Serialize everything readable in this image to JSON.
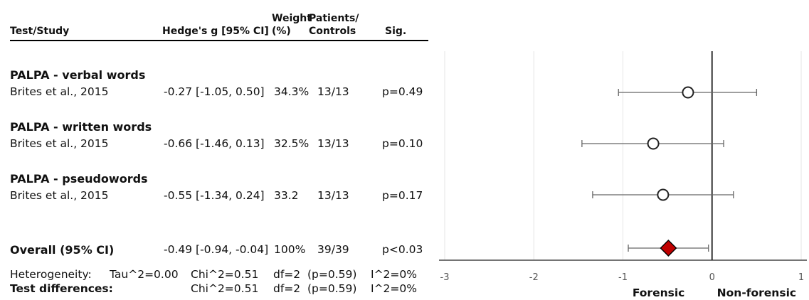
{
  "headers": {
    "study": "Test/Study",
    "effect": "Hedge's g [95% CI]",
    "weight_l1": "Weight",
    "weight_l2": "(%)",
    "pc_l1": "Patients/",
    "pc_l2": "Controls",
    "sig": "Sig."
  },
  "groups": [
    {
      "title": "PALPA - verbal words",
      "study": "Brites et al., 2015",
      "effect": "-0.27 [-1.05, 0.50]",
      "weight": "34.3%",
      "pc": "13/13",
      "sig": "p=0.49"
    },
    {
      "title": "PALPA - written words",
      "study": "Brites et al., 2015",
      "effect": "-0.66 [-1.46, 0.13]",
      "weight": "32.5%",
      "pc": "13/13",
      "sig": "p=0.10"
    },
    {
      "title": "PALPA - pseudowords",
      "study": "Brites et al., 2015",
      "effect": "-0.55 [-1.34, 0.24]",
      "weight": "33.2",
      "pc": "13/13",
      "sig": "p=0.17"
    }
  ],
  "overall": {
    "label": "Overall (95% CI)",
    "effect": "-0.49 [-0.94, -0.04]",
    "weight": "100%",
    "pc": "39/39",
    "sig": "p<0.03"
  },
  "heterogeneity": {
    "label": "Heterogeneity:",
    "tau": "Tau^2=0.00",
    "chi": "Chi^2=0.51",
    "df": "df=2",
    "p": "(p=0.59)",
    "i2": "I^2=0%"
  },
  "test_differences": {
    "label": "Test differences:",
    "chi": "Chi^2=0.51",
    "df": "df=2",
    "p": "(p=0.59)",
    "i2": "I^2=0%"
  },
  "chart_data": {
    "type": "scatter",
    "subtype": "forest-plot",
    "xlim": [
      -3,
      1
    ],
    "xticks": [
      "-3",
      "-2",
      "-1",
      "0",
      "1"
    ],
    "reference_line": 0,
    "grid": true,
    "x_axis_words": {
      "left": "Forensic",
      "right": "Non-forensic"
    },
    "studies": [
      {
        "estimate": -0.27,
        "lower": -1.05,
        "upper": 0.5
      },
      {
        "estimate": -0.66,
        "lower": -1.46,
        "upper": 0.13
      },
      {
        "estimate": -0.55,
        "lower": -1.34,
        "upper": 0.24
      }
    ],
    "summary": {
      "estimate": -0.49,
      "lower": -0.94,
      "upper": -0.04,
      "color": "#c00000"
    },
    "colors": {
      "line": "#666666",
      "marker_fill": "#ffffff",
      "marker_stroke": "#222222",
      "grid": "#e6e6e6"
    }
  }
}
